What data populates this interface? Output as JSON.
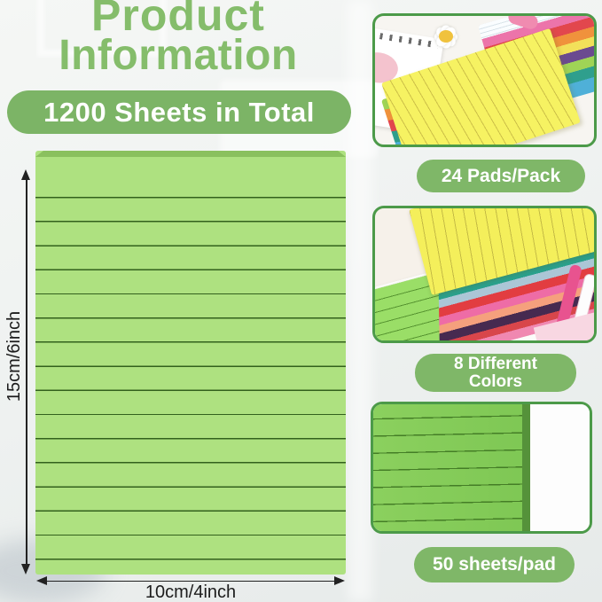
{
  "title": {
    "line1": "Product",
    "line2": "Information"
  },
  "badge": {
    "label": "1200 Sheets in Total"
  },
  "pad_diagram": {
    "height_label": "15cm/6inch",
    "width_label": "10cm/4inch"
  },
  "features": [
    {
      "name": "pads-per-pack",
      "label": "24 Pads/Pack"
    },
    {
      "name": "different-colors",
      "label": "8 Different Colors",
      "lines": [
        "8 Different",
        "Colors"
      ]
    },
    {
      "name": "sheets-per-pad",
      "label": "50 sheets/pad"
    }
  ],
  "colors": {
    "title_green": "#85bd6b",
    "accent_green": "#7cb466",
    "pill_green": "#7fb768",
    "thumb_border_green": "#4c9a49",
    "pad_fill": "#aee180",
    "pad_line": "#33611d",
    "pad_top_edge": "#8ac05e",
    "photo_green_line": "#447d26",
    "dimension_text": "#1c1c1c"
  }
}
